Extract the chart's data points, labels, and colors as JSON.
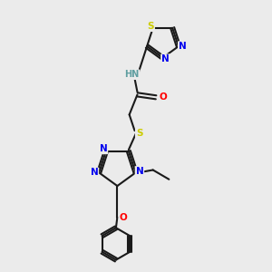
{
  "background_color": "#ebebeb",
  "bond_color": "#1a1a1a",
  "atom_colors": {
    "N": "#0000ee",
    "S": "#cccc00",
    "O": "#ff0000",
    "H": "#5f9ea0",
    "C": "#1a1a1a"
  },
  "figsize": [
    3.0,
    3.0
  ],
  "dpi": 100,
  "lw": 1.5,
  "fontsize": 7.5
}
